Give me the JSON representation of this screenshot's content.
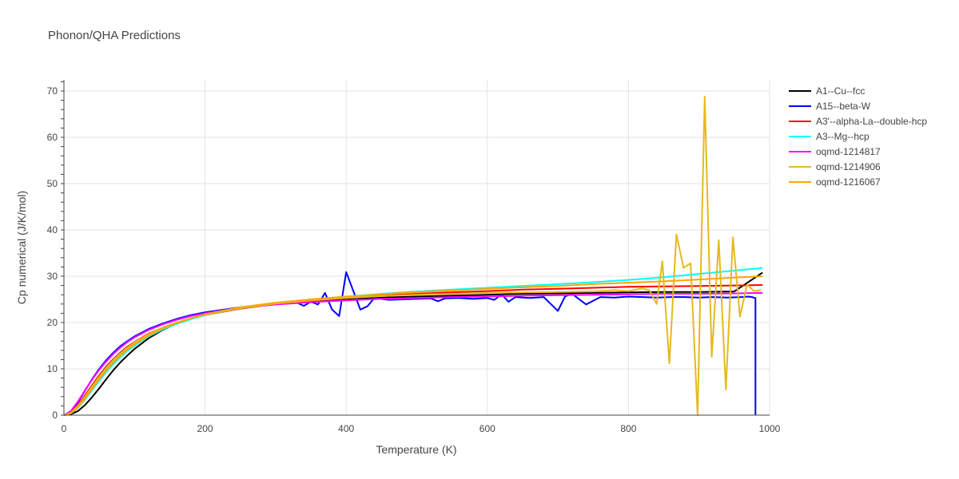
{
  "chart_data": {
    "type": "line",
    "title": "Phonon/QHA Predictions",
    "xlabel": "Temperature (K)",
    "ylabel": "Cp numerical (J/K/mol)",
    "xlim": [
      0,
      1000
    ],
    "ylim": [
      0,
      72
    ],
    "xticks": [
      0,
      200,
      400,
      600,
      800,
      1000
    ],
    "yticks": [
      0,
      10,
      20,
      30,
      40,
      50,
      60,
      70
    ],
    "grid": true,
    "legend_position": "right",
    "x": [
      0,
      10,
      20,
      30,
      40,
      50,
      60,
      70,
      80,
      90,
      100,
      120,
      140,
      160,
      180,
      200,
      250,
      300,
      350,
      400,
      450,
      500,
      550,
      600,
      650,
      700,
      750,
      800,
      850,
      900,
      950,
      990
    ],
    "series": [
      {
        "name": "A1--Cu--fcc",
        "color": "#000000",
        "values": [
          0,
          0.2,
          0.9,
          2.2,
          3.9,
          5.8,
          7.8,
          9.7,
          11.4,
          12.9,
          14.3,
          16.6,
          18.4,
          19.8,
          20.9,
          21.8,
          23.2,
          24.1,
          24.7,
          25.1,
          25.4,
          25.6,
          25.8,
          26.0,
          26.2,
          26.3,
          26.4,
          26.5,
          26.6,
          26.6,
          26.7,
          30.8
        ]
      },
      {
        "name": "A15--beta-W",
        "color": "#0000ff",
        "x": [
          0,
          10,
          20,
          30,
          40,
          50,
          60,
          70,
          80,
          90,
          100,
          120,
          140,
          160,
          180,
          200,
          250,
          300,
          330,
          340,
          350,
          360,
          370,
          380,
          390,
          400,
          420,
          430,
          440,
          460,
          480,
          500,
          520,
          530,
          540,
          560,
          580,
          600,
          610,
          620,
          630,
          640,
          660,
          680,
          700,
          710,
          720,
          740,
          760,
          780,
          800,
          820,
          840,
          860,
          880,
          900,
          920,
          940,
          960,
          970,
          975,
          980,
          980
        ],
        "values": [
          0,
          0.8,
          2.8,
          5.3,
          7.8,
          10.0,
          11.9,
          13.5,
          14.9,
          16.0,
          17.0,
          18.6,
          19.8,
          20.8,
          21.6,
          22.2,
          23.3,
          23.9,
          24.3,
          23.6,
          24.5,
          23.9,
          26.4,
          22.8,
          21.4,
          30.9,
          22.8,
          23.5,
          25.3,
          24.9,
          25.0,
          25.1,
          25.2,
          24.6,
          25.2,
          25.3,
          25.1,
          25.3,
          24.9,
          26.1,
          24.5,
          25.5,
          25.3,
          25.5,
          22.5,
          25.6,
          26.2,
          23.9,
          25.5,
          25.4,
          25.6,
          25.5,
          25.4,
          25.5,
          25.5,
          25.4,
          25.5,
          25.4,
          25.5,
          25.6,
          25.5,
          25.3,
          0
        ]
      },
      {
        "name": "A3'--alpha-La--double-hcp",
        "color": "#ff0000",
        "values": [
          0,
          0.6,
          2.2,
          4.3,
          6.5,
          8.6,
          10.5,
          12.1,
          13.5,
          14.8,
          15.8,
          17.6,
          18.9,
          20.0,
          20.9,
          21.6,
          23.0,
          24.0,
          24.7,
          25.3,
          25.8,
          26.2,
          26.5,
          26.8,
          27.1,
          27.3,
          27.5,
          27.7,
          27.8,
          27.9,
          28.0,
          28.1
        ]
      },
      {
        "name": "A3--Mg--hcp",
        "color": "#00ffff",
        "values": [
          0,
          0.4,
          1.6,
          3.4,
          5.4,
          7.4,
          9.3,
          11.0,
          12.5,
          13.9,
          15.0,
          17.0,
          18.5,
          19.7,
          20.7,
          21.6,
          23.1,
          24.2,
          25.0,
          25.6,
          26.2,
          26.7,
          27.1,
          27.5,
          27.9,
          28.3,
          28.7,
          29.2,
          29.8,
          30.5,
          31.2,
          31.8
        ]
      },
      {
        "name": "oqmd-1214817",
        "color": "#ff00ff",
        "values": [
          0,
          0.9,
          3.0,
          5.4,
          7.7,
          9.8,
          11.6,
          13.2,
          14.6,
          15.8,
          16.8,
          18.4,
          19.6,
          20.6,
          21.4,
          22.0,
          23.2,
          23.9,
          24.4,
          24.8,
          25.1,
          25.3,
          25.5,
          25.6,
          25.8,
          25.9,
          26.0,
          26.1,
          26.2,
          26.2,
          26.3,
          26.4
        ]
      },
      {
        "name": "oqmd-1214906",
        "color": "#e6b91e",
        "x": [
          0,
          10,
          20,
          30,
          40,
          50,
          60,
          70,
          80,
          90,
          100,
          120,
          140,
          160,
          180,
          200,
          250,
          300,
          350,
          400,
          450,
          500,
          550,
          600,
          650,
          700,
          750,
          780,
          800,
          820,
          830,
          840,
          848,
          858,
          868,
          878,
          888,
          898,
          908,
          918,
          928,
          938,
          948,
          958,
          968,
          978,
          988
        ],
        "values": [
          0,
          0.5,
          2.0,
          4.0,
          6.2,
          8.3,
          10.2,
          11.9,
          13.3,
          14.6,
          15.7,
          17.5,
          18.9,
          20.0,
          20.9,
          21.7,
          23.1,
          24.1,
          24.8,
          25.3,
          25.7,
          26.0,
          26.2,
          26.4,
          26.5,
          26.6,
          26.7,
          27.0,
          26.8,
          27.4,
          26.9,
          24.0,
          33.2,
          11.2,
          39.0,
          31.8,
          32.8,
          0,
          68.8,
          12.6,
          37.8,
          5.5,
          38.4,
          21.3,
          28.2,
          26.8,
          27.0
        ]
      },
      {
        "name": "oqmd-1216067",
        "color": "#ffa500",
        "values": [
          0,
          0.4,
          1.7,
          3.6,
          5.7,
          7.8,
          9.7,
          11.4,
          12.9,
          14.2,
          15.3,
          17.2,
          18.7,
          19.9,
          20.9,
          21.8,
          23.3,
          24.3,
          25.0,
          25.6,
          26.1,
          26.6,
          26.9,
          27.3,
          27.6,
          27.9,
          28.3,
          28.6,
          28.9,
          29.3,
          29.7,
          30.0
        ]
      }
    ]
  }
}
